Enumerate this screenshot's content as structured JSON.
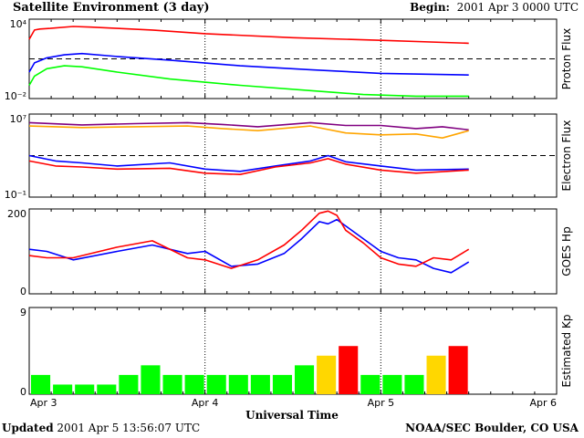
{
  "header": {
    "title": "Satellite Environment (3 day)",
    "begin_label": "Begin:",
    "begin_value": "2001 Apr 3 0000 UTC"
  },
  "footer": {
    "updated_label": "Updated",
    "updated_value": "2001 Apr  5 13:56:07 UTC",
    "credit": "NOAA/SEC Boulder, CO USA"
  },
  "x_axis": {
    "label": "Universal Time",
    "ticks": [
      "Apr 3",
      "Apr 4",
      "Apr 5",
      "Apr 6"
    ]
  },
  "colors": {
    "red": "#ff0000",
    "blue": "#0000ff",
    "green": "#00ff00",
    "purple": "#800080",
    "orange": "#ffa500",
    "kp_green": "#00ff00",
    "kp_yellow": "#ffd700",
    "kp_red": "#ff0000"
  },
  "chart_data": [
    {
      "type": "line",
      "ylabel": "Proton Flux",
      "yscale": "log",
      "ylim": [
        0.01,
        10000
      ],
      "yticks": [
        "10⁴",
        "10⁻²"
      ],
      "threshold": 10,
      "x_unit": "days since Apr 3 0000 UTC",
      "series": [
        {
          "color": "red",
          "x": [
            0,
            0.03,
            0.06,
            0.12,
            0.25,
            0.35,
            0.5,
            0.7,
            1.0,
            1.5,
            2.0,
            2.5
          ],
          "y": [
            300,
            1500,
            1800,
            2000,
            2800,
            2500,
            2000,
            1500,
            800,
            400,
            250,
            150
          ]
        },
        {
          "color": "blue",
          "x": [
            0,
            0.03,
            0.1,
            0.2,
            0.3,
            0.5,
            0.8,
            1.2,
            1.6,
            2.0,
            2.5
          ],
          "y": [
            1.0,
            5,
            12,
            20,
            25,
            15,
            8,
            3,
            1.5,
            0.8,
            0.6
          ]
        },
        {
          "color": "green",
          "x": [
            0,
            0.03,
            0.1,
            0.2,
            0.3,
            0.5,
            0.8,
            1.2,
            1.6,
            1.9,
            2.2,
            2.5
          ],
          "y": [
            0.1,
            0.5,
            1.8,
            3,
            2.5,
            1.0,
            0.3,
            0.1,
            0.04,
            0.02,
            0.015,
            0.015
          ]
        }
      ]
    },
    {
      "type": "line",
      "ylabel": "Electron Flux",
      "yscale": "log",
      "ylim": [
        0.1,
        10000000
      ],
      "yticks": [
        "10⁷",
        "10⁻¹"
      ],
      "threshold": 1000,
      "x_unit": "days since Apr 3 0000 UTC",
      "series": [
        {
          "color": "purple",
          "x": [
            0,
            0.3,
            0.6,
            0.9,
            1.1,
            1.3,
            1.6,
            1.8,
            2.0,
            2.2,
            2.35,
            2.5
          ],
          "y": [
            1500000,
            900000,
            1200000,
            1500000,
            1000000,
            600000,
            1500000,
            800000,
            800000,
            400000,
            600000,
            300000
          ]
        },
        {
          "color": "orange",
          "x": [
            0,
            0.3,
            0.6,
            0.9,
            1.1,
            1.3,
            1.6,
            1.8,
            2.0,
            2.2,
            2.35,
            2.5
          ],
          "y": [
            700000,
            500000,
            600000,
            700000,
            400000,
            250000,
            700000,
            150000,
            100000,
            120000,
            50000,
            250000
          ]
        },
        {
          "color": "blue",
          "x": [
            0,
            0.15,
            0.3,
            0.5,
            0.8,
            1.0,
            1.2,
            1.4,
            1.6,
            1.7,
            1.8,
            2.0,
            2.2,
            2.5
          ],
          "y": [
            1000,
            300,
            200,
            100,
            200,
            50,
            30,
            100,
            300,
            1000,
            250,
            100,
            40,
            50
          ]
        },
        {
          "color": "red",
          "x": [
            0,
            0.15,
            0.3,
            0.5,
            0.8,
            1.0,
            1.2,
            1.4,
            1.6,
            1.7,
            1.8,
            2.0,
            2.2,
            2.5
          ],
          "y": [
            300,
            100,
            80,
            50,
            60,
            20,
            15,
            80,
            200,
            500,
            150,
            40,
            20,
            40
          ]
        }
      ]
    },
    {
      "type": "line",
      "ylabel": "GOES Hp",
      "ylim": [
        0,
        200
      ],
      "yticks": [
        "200",
        "0"
      ],
      "x_unit": "days since Apr 3 0000 UTC",
      "series": [
        {
          "color": "blue",
          "x": [
            0,
            0.1,
            0.25,
            0.5,
            0.7,
            0.9,
            1.0,
            1.15,
            1.3,
            1.45,
            1.55,
            1.65,
            1.7,
            1.75,
            1.8,
            1.9,
            2.0,
            2.1,
            2.2,
            2.3,
            2.4,
            2.5
          ],
          "y": [
            105,
            100,
            80,
            100,
            115,
            95,
            100,
            65,
            70,
            95,
            130,
            170,
            165,
            175,
            160,
            130,
            100,
            85,
            80,
            60,
            50,
            75
          ]
        },
        {
          "color": "red",
          "x": [
            0,
            0.1,
            0.25,
            0.5,
            0.7,
            0.9,
            1.0,
            1.15,
            1.3,
            1.45,
            1.55,
            1.65,
            1.7,
            1.75,
            1.8,
            1.9,
            2.0,
            2.1,
            2.2,
            2.3,
            2.4,
            2.5
          ],
          "y": [
            90,
            85,
            85,
            110,
            125,
            85,
            80,
            60,
            80,
            115,
            150,
            190,
            195,
            185,
            150,
            120,
            85,
            70,
            65,
            85,
            80,
            105
          ]
        }
      ]
    },
    {
      "type": "bar",
      "ylabel": "Estimated Kp",
      "ylim": [
        0,
        9
      ],
      "yticks": [
        "9",
        "0"
      ],
      "x_unit": "3-hour intervals",
      "values": [
        2,
        1,
        1,
        1,
        2,
        3,
        2,
        2,
        2,
        2,
        2,
        2,
        3,
        4,
        5,
        2,
        2,
        2,
        4,
        5
      ],
      "bar_colors": [
        "kp_green",
        "kp_green",
        "kp_green",
        "kp_green",
        "kp_green",
        "kp_green",
        "kp_green",
        "kp_green",
        "kp_green",
        "kp_green",
        "kp_green",
        "kp_green",
        "kp_green",
        "kp_yellow",
        "kp_red",
        "kp_green",
        "kp_green",
        "kp_green",
        "kp_yellow",
        "kp_red"
      ]
    }
  ]
}
